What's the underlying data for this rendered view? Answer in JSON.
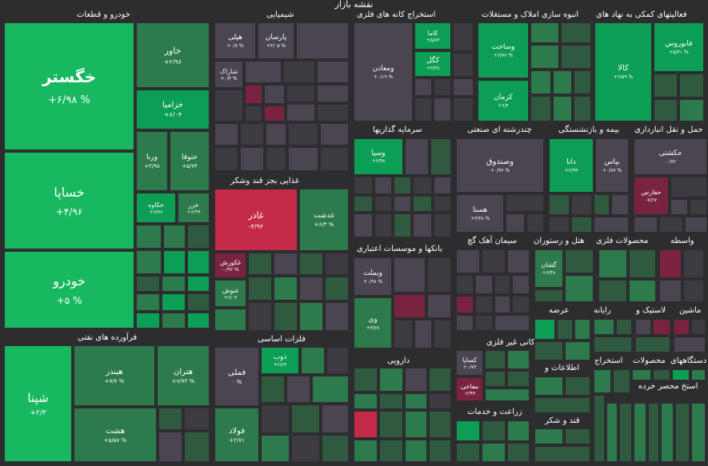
{
  "title": "نقشه بازار",
  "sections": {
    "khodro": "خودرو و قطعات",
    "shimiaei": "شیمیایی",
    "estekhraj": "استخراج کانه های فلزی",
    "anbooh": "انبوه سازی املاک و مستغلات",
    "faaliat": "فعالیتهای کمکی به نهاد های",
    "ghazaei": "غذایی بجز قند وشکر",
    "sarmaye": "سرمایه گذاریها",
    "chand": "چندرشته ای صنعتی",
    "bime": "بیمه و بازنشستگی",
    "haml": "حمل و نقل انبارداری",
    "bankha": "بانکها و موسسات اعتباری",
    "siman": "سیمان آهک گچ",
    "hotel": "هتل و رستوران",
    "mahsoolat_felezi": "محصولات فلزی",
    "vasete": "واسطه",
    "faravarde": "فرآورده های نفتی",
    "felezat": "فلزات اساسی",
    "daroo": "دارویی",
    "kani": "کانی غیر فلزی",
    "arze": "عرضه",
    "rayane": "رایانه",
    "lastik": "لاستیک و",
    "mashin": "ماشین",
    "ettelaat": "اطلاعات و",
    "estekhraj2": "استخراج",
    "mahsoolat2": "محصولات",
    "dastgah": "دستگاههای",
    "zeraat": "زراعت و خدمات",
    "ghand": "قند و شکر",
    "kharde": "استخ محصر خرده"
  },
  "tiles": {
    "khegostar": {
      "name": "خگستر",
      "value": "+۶/۹۸ %"
    },
    "khaspa": {
      "name": "خساپا",
      "value": "+۴/۹۶"
    },
    "khodro": {
      "name": "خودرو",
      "value": "+۵ %"
    },
    "khavar": {
      "name": "خاور",
      "value": "+۲/۹۶"
    },
    "khazamia": {
      "name": "خزامیا",
      "value": "+۶/۰۴"
    },
    "vorna": {
      "name": "ورنا",
      "value": "+۲/۹۸"
    },
    "khtoghva": {
      "name": "ختوقا",
      "value": "+۵/۷۴"
    },
    "khekaveh": {
      "name": "خکاوه",
      "value": "+۷/۷۷"
    },
    "khazar": {
      "name": "خزر",
      "value": "+۶/۹۹"
    },
    "shepna": {
      "name": "شپنا",
      "value": "+۲/۳"
    },
    "hebandar": {
      "name": "هبندر",
      "value": "+۷/۷ %"
    },
    "hetran": {
      "name": "هتران",
      "value": "+۷/۷۳ %"
    },
    "heshat": {
      "name": "هشت",
      "value": "+۵/۵۷ %"
    },
    "shepli": {
      "name": "هپلی",
      "value": "+۰/۷ %"
    },
    "shparsan": {
      "name": "پارسان",
      "value": "+۳/۰۵ %"
    },
    "sharak": {
      "name": "شاراک",
      "value": "+۰/۴ %"
    },
    "vamaaden": {
      "name": "ومعادن",
      "value": "+۰/۱۹ %"
    },
    "kama": {
      "name": "کاما",
      "value": "+۵/۸۳"
    },
    "kegol": {
      "name": "کگل",
      "value": "+۳/۳۸"
    },
    "vasakht": {
      "name": "وساخت",
      "value": "+۶/۷۶ %"
    },
    "kerman": {
      "name": "کرمان",
      "value": "+۶/۴"
    },
    "fabourus": {
      "name": "فابوروس",
      "value": "+۵/۳۱ %"
    },
    "kala": {
      "name": "کالا",
      "value": "+۲/۵۹ %"
    },
    "ghazar": {
      "name": "غاذر",
      "value": "-۴/۹۲"
    },
    "ghadasht": {
      "name": "غدشت",
      "value": "+۶/۳ %"
    },
    "ghakurosh": {
      "name": "غکورش",
      "value": "-۰/۹۲ %"
    },
    "ghanosh": {
      "name": "غنوش",
      "value": "+۶/۰۴"
    },
    "vaspa": {
      "name": "وسپا",
      "value": "+۶/۹۸"
    },
    "vasandogh": {
      "name": "وصندوق",
      "value": "+۰/۹۶ %"
    },
    "hesta": {
      "name": "هستا",
      "value": "+۳/۳۸ %"
    },
    "dana": {
      "name": "دانا",
      "value": "+۲/۹۹"
    },
    "bpas": {
      "name": "بپاس",
      "value": "+۰/۷۷ %"
    },
    "hakashti": {
      "name": "حکشتی",
      "value": "-۰/۷۲"
    },
    "hafars": {
      "name": "حفارس",
      "value": "-۷/۶۷"
    },
    "vabemelat": {
      "name": "وبملت",
      "value": "+۰/۹۸ %"
    },
    "vadi": {
      "name": "وی",
      "value": "+۴/۷۸"
    },
    "ghashan": {
      "name": "گشان",
      "value": "+۶/۴۸"
    },
    "fameli": {
      "name": "فملی",
      "value": "۰ %"
    },
    "zob": {
      "name": "ذوب",
      "value": "+۲/۶۳"
    },
    "foolad": {
      "name": "فولاد",
      "value": "+۲/۷۱"
    },
    "kesapa": {
      "name": "کساپا",
      "value": "+۰/۷۳"
    },
    "mafakhami": {
      "name": "مفاخی",
      "value": "-۲/۹۹"
    }
  }
}
